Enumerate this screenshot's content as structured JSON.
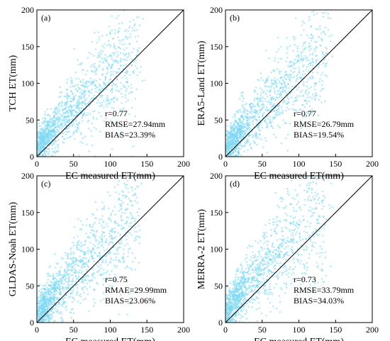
{
  "chart_data": [
    {
      "type": "scatter",
      "panel_label": "(a)",
      "xlabel": "EC measured ET(mm)",
      "ylabel": "TCH ET(mm)",
      "xlim": [
        0,
        200
      ],
      "ylim": [
        0,
        200
      ],
      "xticks": [
        "0",
        "50",
        "100",
        "150",
        "200"
      ],
      "yticks": [
        "0",
        "50",
        "100",
        "150",
        "200"
      ],
      "reference_line": "1:1",
      "point_color": "#7fd8f2",
      "stats": [
        "r=0.77",
        "RMSE=27.94mm",
        "BIAS=23.39%"
      ],
      "regression": {
        "slope": 0.9,
        "intercept": 22,
        "spread": 0.24,
        "n": 1300
      }
    },
    {
      "type": "scatter",
      "panel_label": "(b)",
      "xlabel": "EC measured ET(mm)",
      "ylabel": "ERA5-Land ET(mm)",
      "xlim": [
        0,
        200
      ],
      "ylim": [
        0,
        200
      ],
      "xticks": [
        "0",
        "50",
        "100",
        "150",
        "200"
      ],
      "yticks": [
        "0",
        "50",
        "100",
        "150",
        "200"
      ],
      "reference_line": "1:1",
      "point_color": "#7fd8f2",
      "stats": [
        "r=0.77",
        "RMSE=26.79mm",
        "BIAS=19.54%"
      ],
      "regression": {
        "slope": 0.9,
        "intercept": 20,
        "spread": 0.22,
        "n": 1300
      }
    },
    {
      "type": "scatter",
      "panel_label": "(c)",
      "xlabel": "EC measured ET(mm)",
      "ylabel": "GLDAS-Noah ET(mm)",
      "xlim": [
        0,
        200
      ],
      "ylim": [
        0,
        200
      ],
      "xticks": [
        "0",
        "50",
        "100",
        "150",
        "200"
      ],
      "yticks": [
        "0",
        "50",
        "100",
        "150",
        "200"
      ],
      "reference_line": "1:1",
      "point_color": "#7fd8f2",
      "stats": [
        "r=0.75",
        "RMAE=29.99mm",
        "BIAS=23.06%"
      ],
      "regression": {
        "slope": 0.95,
        "intercept": 20,
        "spread": 0.26,
        "n": 1300
      }
    },
    {
      "type": "scatter",
      "panel_label": "(d)",
      "xlabel": "EC measured ET(mm)",
      "ylabel": "MERRA-2 ET(mm)",
      "xlim": [
        0,
        200
      ],
      "ylim": [
        0,
        200
      ],
      "xticks": [
        "0",
        "50",
        "100",
        "150",
        "200"
      ],
      "yticks": [
        "0",
        "50",
        "100",
        "150",
        "200"
      ],
      "reference_line": "1:1",
      "point_color": "#7fd8f2",
      "stats": [
        "r=0.73",
        "RMSE=33.79mm",
        "BIAS=34.03%"
      ],
      "regression": {
        "slope": 1.05,
        "intercept": 22,
        "spread": 0.28,
        "n": 1300
      }
    }
  ]
}
